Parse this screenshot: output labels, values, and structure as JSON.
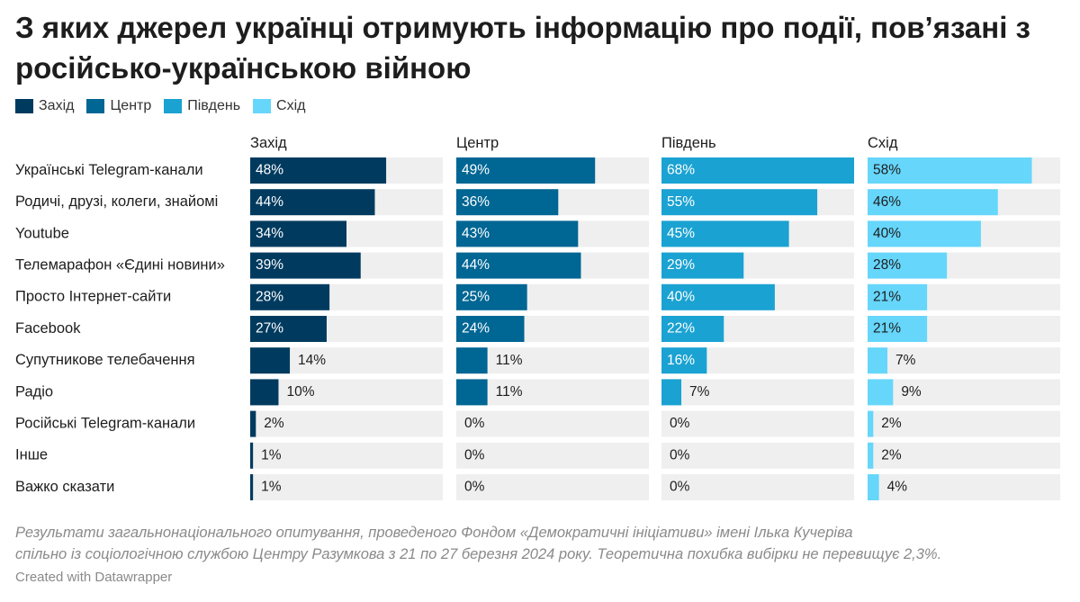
{
  "title": "З яких джерел українці отримують інформацію про події, пов’язані з російсько-українською війною",
  "legend": [
    {
      "label": "Захід",
      "color": "#003b5f"
    },
    {
      "label": "Центр",
      "color": "#006694"
    },
    {
      "label": "Південь",
      "color": "#1aa2d2"
    },
    {
      "label": "Схід",
      "color": "#66d6fb"
    }
  ],
  "chart_data": {
    "type": "bar",
    "orientation": "horizontal",
    "layout": "small-multiples",
    "categories": [
      "Українські Telegram-канали",
      "Родичі, друзі, колеги, знайомі",
      "Youtube",
      "Телемарафон «Єдині новини»",
      "Просто Інтернет-сайти",
      "Facebook",
      "Супутникове телебачення",
      "Радіо",
      "Російські Telegram-канали",
      "Інше",
      "Важко сказати"
    ],
    "xlim": [
      0,
      68
    ],
    "unit": "%",
    "series": [
      {
        "name": "Захід",
        "color": "#003b5f",
        "values": [
          48,
          44,
          34,
          39,
          28,
          27,
          14,
          10,
          2,
          1,
          1
        ]
      },
      {
        "name": "Центр",
        "color": "#006694",
        "values": [
          49,
          36,
          43,
          44,
          25,
          24,
          11,
          11,
          0,
          0,
          0
        ]
      },
      {
        "name": "Південь",
        "color": "#1aa2d2",
        "values": [
          68,
          55,
          45,
          29,
          40,
          22,
          16,
          7,
          0,
          0,
          0
        ]
      },
      {
        "name": "Схід",
        "color": "#66d6fb",
        "values": [
          58,
          46,
          40,
          28,
          21,
          21,
          7,
          9,
          2,
          2,
          4
        ]
      }
    ]
  },
  "notes": [
    "Результати загальнонаціонального опитування, проведеного Фондом «Демократичні ініціативи» імені Ілька Кучеріва",
    "спільно із соціологічною службою Центру Разумкова з 21 по 27 березня 2024 року. Теоретична похибка вибірки не перевищує 2,3%."
  ],
  "credit": "Created with Datawrapper"
}
